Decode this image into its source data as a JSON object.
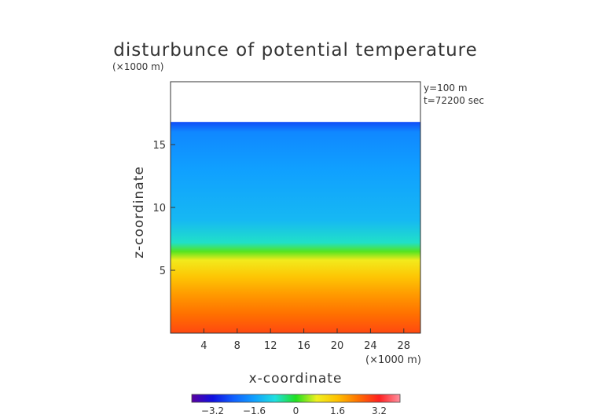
{
  "chart_data": {
    "type": "heatmap",
    "title": "disturbunce of potential temperature",
    "xlabel": "x-coordinate",
    "ylabel": "z-coordinate",
    "x_unit": "(×1000 m)",
    "y_unit": "(×1000 m)",
    "annotations": [
      "y=100 m",
      "t=72200 sec"
    ],
    "xlim": [
      0,
      30
    ],
    "ylim": [
      0,
      20
    ],
    "x_ticks": [
      4,
      8,
      12,
      16,
      20,
      24,
      28
    ],
    "y_ticks": [
      5,
      10,
      15
    ],
    "data_top_z": 16.8,
    "colorbar": {
      "range": [
        -4,
        4
      ],
      "tick_values": [
        -3.2,
        -1.6,
        0,
        1.6,
        3.2
      ],
      "tick_labels": [
        "−3.2",
        "−1.6",
        "0",
        "1.6",
        "3.2"
      ],
      "colors": [
        "#5a00a0",
        "#1010e0",
        "#1060ff",
        "#10a0ff",
        "#20e0e0",
        "#20e020",
        "#f0f020",
        "#ffc000",
        "#ff7000",
        "#ff2020",
        "#ff90a0"
      ]
    },
    "profile": [
      {
        "z": 0,
        "value": 2.8
      },
      {
        "z": 1.5,
        "value": 2.4
      },
      {
        "z": 3,
        "value": 2.0
      },
      {
        "z": 4.5,
        "value": 1.5
      },
      {
        "z": 5.8,
        "value": 0.9
      },
      {
        "z": 6.5,
        "value": 0.2
      },
      {
        "z": 7.2,
        "value": -0.7
      },
      {
        "z": 9,
        "value": -1.3
      },
      {
        "z": 13,
        "value": -1.6
      },
      {
        "z": 16,
        "value": -1.9
      },
      {
        "z": 16.8,
        "value": -2.6
      }
    ]
  }
}
